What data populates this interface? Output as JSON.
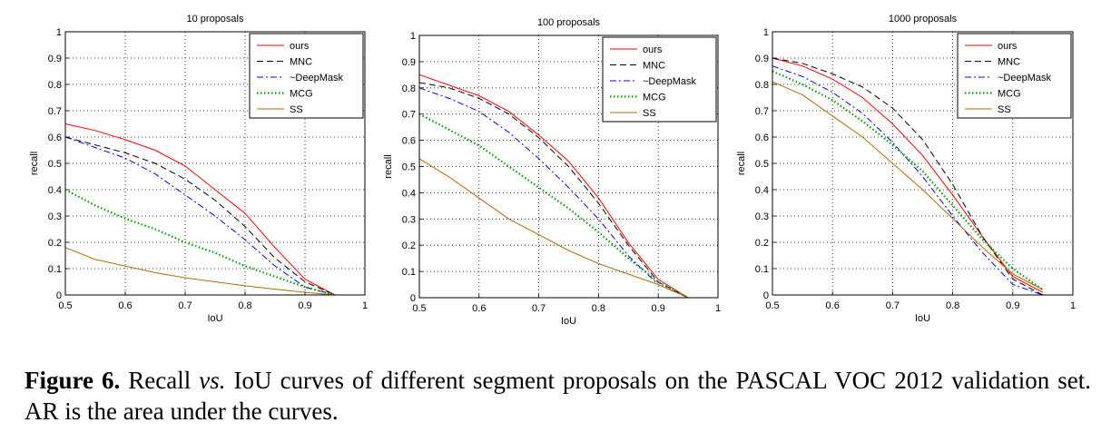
{
  "chart_data": [
    {
      "type": "line",
      "title": "10 proposals",
      "xlabel": "IoU",
      "ylabel": "recall",
      "xlim": [
        0.5,
        1
      ],
      "ylim": [
        0,
        1
      ],
      "xticks": [
        "0.5",
        "0.6",
        "0.7",
        "0.8",
        "0.9",
        "1"
      ],
      "yticks": [
        "0",
        "0.1",
        "0.2",
        "0.3",
        "0.4",
        "0.5",
        "0.6",
        "0.7",
        "0.8",
        "0.9",
        "1"
      ],
      "grid": true,
      "legend_position": "top-right",
      "series": [
        {
          "name": "ours",
          "x": [
            0.5,
            0.55,
            0.6,
            0.65,
            0.7,
            0.75,
            0.8,
            0.85,
            0.9,
            0.95
          ],
          "values": [
            0.65,
            0.625,
            0.59,
            0.55,
            0.49,
            0.4,
            0.31,
            0.18,
            0.06,
            0.0
          ]
        },
        {
          "name": "MNC",
          "x": [
            0.5,
            0.55,
            0.6,
            0.65,
            0.7,
            0.75,
            0.8,
            0.85,
            0.9,
            0.95
          ],
          "values": [
            0.6,
            0.57,
            0.54,
            0.5,
            0.44,
            0.36,
            0.26,
            0.14,
            0.05,
            0.0
          ]
        },
        {
          "name": "~DeepMask",
          "x": [
            0.5,
            0.55,
            0.6,
            0.65,
            0.7,
            0.75,
            0.8,
            0.85,
            0.9,
            0.95
          ],
          "values": [
            0.6,
            0.56,
            0.52,
            0.46,
            0.38,
            0.3,
            0.21,
            0.11,
            0.03,
            0.0
          ]
        },
        {
          "name": "MCG",
          "x": [
            0.5,
            0.55,
            0.6,
            0.65,
            0.7,
            0.75,
            0.8,
            0.85,
            0.9,
            0.95
          ],
          "values": [
            0.4,
            0.34,
            0.29,
            0.25,
            0.2,
            0.16,
            0.11,
            0.07,
            0.03,
            0.0
          ]
        },
        {
          "name": "SS",
          "x": [
            0.5,
            0.55,
            0.6,
            0.65,
            0.7,
            0.75,
            0.8,
            0.85,
            0.9,
            0.95
          ],
          "values": [
            0.18,
            0.135,
            0.11,
            0.085,
            0.065,
            0.05,
            0.035,
            0.022,
            0.01,
            0.0
          ]
        }
      ]
    },
    {
      "type": "line",
      "title": "100 proposals",
      "xlabel": "IoU",
      "ylabel": "recall",
      "xlim": [
        0.5,
        1
      ],
      "ylim": [
        0,
        1
      ],
      "xticks": [
        "0.5",
        "0.6",
        "0.7",
        "0.8",
        "0.9",
        "1"
      ],
      "yticks": [
        "0",
        "0.1",
        "0.2",
        "0.3",
        "0.4",
        "0.5",
        "0.6",
        "0.7",
        "0.8",
        "0.9",
        "1"
      ],
      "grid": true,
      "legend_position": "top-right",
      "series": [
        {
          "name": "ours",
          "x": [
            0.5,
            0.55,
            0.6,
            0.65,
            0.7,
            0.75,
            0.8,
            0.85,
            0.9,
            0.95
          ],
          "values": [
            0.85,
            0.81,
            0.77,
            0.71,
            0.62,
            0.52,
            0.38,
            0.21,
            0.07,
            0.0
          ]
        },
        {
          "name": "MNC",
          "x": [
            0.5,
            0.55,
            0.6,
            0.65,
            0.7,
            0.75,
            0.8,
            0.85,
            0.9,
            0.95
          ],
          "values": [
            0.82,
            0.8,
            0.76,
            0.7,
            0.61,
            0.5,
            0.36,
            0.2,
            0.06,
            0.0
          ]
        },
        {
          "name": "~DeepMask",
          "x": [
            0.5,
            0.55,
            0.6,
            0.65,
            0.7,
            0.75,
            0.8,
            0.85,
            0.9,
            0.95
          ],
          "values": [
            0.8,
            0.76,
            0.71,
            0.63,
            0.53,
            0.42,
            0.3,
            0.16,
            0.05,
            0.0
          ]
        },
        {
          "name": "MCG",
          "x": [
            0.5,
            0.55,
            0.6,
            0.65,
            0.7,
            0.75,
            0.8,
            0.85,
            0.9,
            0.95
          ],
          "values": [
            0.7,
            0.64,
            0.58,
            0.5,
            0.42,
            0.34,
            0.25,
            0.15,
            0.06,
            0.0
          ]
        },
        {
          "name": "SS",
          "x": [
            0.5,
            0.55,
            0.6,
            0.65,
            0.7,
            0.75,
            0.8,
            0.85,
            0.9,
            0.95
          ],
          "values": [
            0.53,
            0.46,
            0.38,
            0.3,
            0.24,
            0.18,
            0.13,
            0.09,
            0.05,
            0.0
          ]
        }
      ]
    },
    {
      "type": "line",
      "title": "1000 proposals",
      "xlabel": "IoU",
      "ylabel": "recall",
      "xlim": [
        0.5,
        1
      ],
      "ylim": [
        0,
        1
      ],
      "xticks": [
        "0.5",
        "0.6",
        "0.7",
        "0.8",
        "0.9",
        "1"
      ],
      "yticks": [
        "0",
        "0.1",
        "0.2",
        "0.3",
        "0.4",
        "0.5",
        "0.6",
        "0.7",
        "0.8",
        "0.9",
        "1"
      ],
      "grid": true,
      "legend_position": "top-right",
      "series": [
        {
          "name": "ours",
          "x": [
            0.5,
            0.55,
            0.6,
            0.65,
            0.7,
            0.75,
            0.8,
            0.85,
            0.9,
            0.95
          ],
          "values": [
            0.9,
            0.87,
            0.82,
            0.75,
            0.65,
            0.53,
            0.38,
            0.22,
            0.07,
            0.01
          ]
        },
        {
          "name": "MNC",
          "x": [
            0.5,
            0.55,
            0.6,
            0.65,
            0.7,
            0.75,
            0.8,
            0.85,
            0.9,
            0.95
          ],
          "values": [
            0.9,
            0.88,
            0.84,
            0.79,
            0.71,
            0.59,
            0.42,
            0.22,
            0.06,
            0.0
          ]
        },
        {
          "name": "~DeepMask",
          "x": [
            0.5,
            0.55,
            0.6,
            0.65,
            0.7,
            0.75,
            0.8,
            0.85,
            0.9,
            0.95
          ],
          "values": [
            0.87,
            0.83,
            0.77,
            0.69,
            0.58,
            0.45,
            0.3,
            0.16,
            0.04,
            0.0
          ]
        },
        {
          "name": "MCG",
          "x": [
            0.5,
            0.55,
            0.6,
            0.65,
            0.7,
            0.75,
            0.8,
            0.85,
            0.9,
            0.95
          ],
          "values": [
            0.85,
            0.8,
            0.74,
            0.66,
            0.57,
            0.47,
            0.34,
            0.21,
            0.1,
            0.02
          ]
        },
        {
          "name": "SS",
          "x": [
            0.5,
            0.55,
            0.6,
            0.65,
            0.7,
            0.75,
            0.8,
            0.85,
            0.9,
            0.95
          ],
          "values": [
            0.81,
            0.76,
            0.68,
            0.6,
            0.5,
            0.4,
            0.29,
            0.18,
            0.08,
            0.02
          ]
        }
      ]
    }
  ],
  "series_styles": [
    {
      "color": "#ff0000",
      "dash": "none",
      "stroke": 1
    },
    {
      "color": "#000000",
      "dash": "7,4",
      "stroke": 1
    },
    {
      "color": "#0000ff",
      "dash": "7,3,2,3",
      "stroke": 1
    },
    {
      "color": "#00a000",
      "dash": "1.5,2.5",
      "stroke": 2.2
    },
    {
      "color": "#b36b00",
      "dash": "none",
      "stroke": 1
    }
  ],
  "caption": {
    "figure_label": "Figure 6.",
    "text_1": " Recall ",
    "text_vs": "vs.",
    "text_2": " IoU curves of different segment proposals on the PASCAL VOC 2012 validation set. AR is the area under the curves."
  }
}
